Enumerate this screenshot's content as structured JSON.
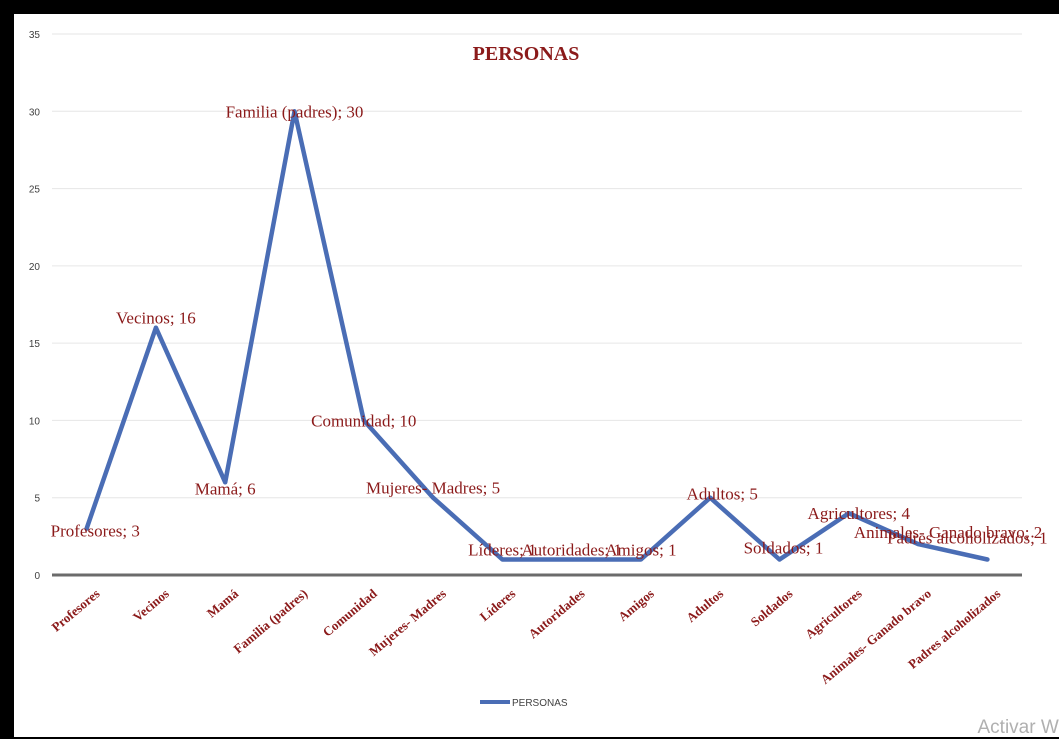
{
  "chart_data": {
    "type": "line",
    "title": "PERSONAS",
    "categories": [
      "Profesores",
      "Vecinos",
      "Mamá",
      "Familia (padres)",
      "Comunidad",
      "Mujeres- Madres",
      "Líderes",
      "Autoridades",
      "Amigos",
      "Adultos",
      "Soldados",
      "Agricultores",
      "Animales- Ganado bravo",
      "Padres alcoholizados"
    ],
    "series": [
      {
        "name": "PERSONAS",
        "values": [
          3,
          16,
          6,
          30,
          10,
          5,
          1,
          1,
          1,
          5,
          1,
          4,
          2,
          1
        ],
        "color": "#4a6db5"
      }
    ],
    "data_labels": [
      "Profesores; 3",
      "Vecinos; 16",
      "Mamá; 6",
      "Familia (padres); 30",
      "Comunidad; 10",
      "Mujeres- Madres; 5",
      "Líderes; 1",
      "Autoridades; 1",
      "Amigos; 1",
      "Adultos; 5",
      "Soldados; 1",
      "Agricultores; 4",
      "Animales- Ganado bravo; 2",
      "Padres alcoholizados; 1"
    ],
    "y_ticks": [
      0,
      5,
      10,
      15,
      20,
      25,
      30,
      35
    ],
    "ylim": [
      0,
      35
    ],
    "grid": true,
    "legend": "bottom",
    "label_color": "#8b1a1a"
  },
  "watermark": "Activar Wi"
}
